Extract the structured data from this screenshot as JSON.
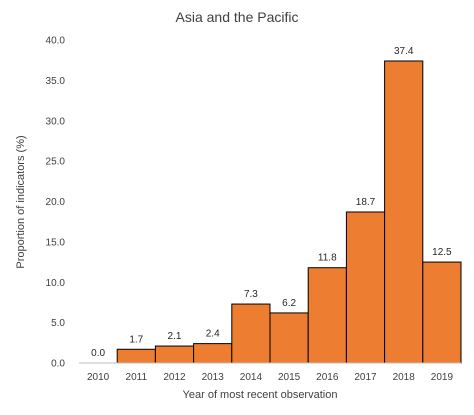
{
  "chart_data": {
    "type": "bar",
    "title": "Asia and the Pacific",
    "xlabel": "Year of most recent observation",
    "ylabel": "Proportion of indicators (%)",
    "categories": [
      "2010",
      "2011",
      "2012",
      "2013",
      "2014",
      "2015",
      "2016",
      "2017",
      "2018",
      "2019"
    ],
    "values": [
      0.0,
      1.7,
      2.1,
      2.4,
      7.3,
      6.2,
      11.8,
      18.7,
      37.4,
      12.5
    ],
    "data_labels": [
      "0.0",
      "1.7",
      "2.1",
      "2.4",
      "7.3",
      "6.2",
      "11.8",
      "18.7",
      "37.4",
      "12.5"
    ],
    "ylim": [
      0,
      40
    ],
    "yticks": [
      "0.0",
      "5.0",
      "10.0",
      "15.0",
      "20.0",
      "25.0",
      "30.0",
      "35.0",
      "40.0"
    ],
    "grid": false,
    "bar_color": "#ED7D31",
    "bar_edge_color": "#000000"
  }
}
